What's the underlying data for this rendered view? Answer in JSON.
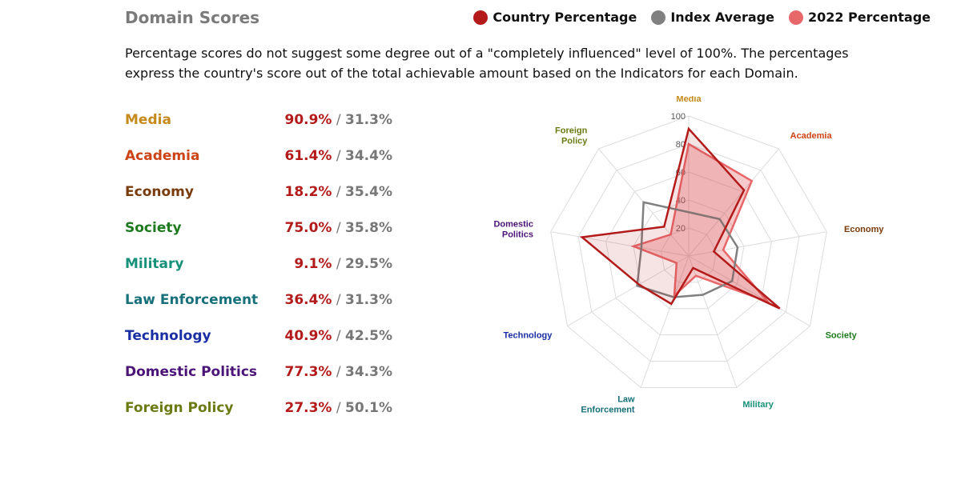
{
  "header": {
    "title": "Domain Scores",
    "note": "Percentage scores do not suggest some degree out of a \"completely influenced\" level of 100%. The percentages express the country's score out of the total achievable amount based on the Indicators for each Domain."
  },
  "legend": [
    {
      "label": "Country Percentage",
      "color": "#b31b1b"
    },
    {
      "label": "Index Average",
      "color": "#808080"
    },
    {
      "label": "2022 Percentage",
      "color": "#e8686a"
    }
  ],
  "rows": [
    {
      "label": "Media",
      "color": "#c58a1c",
      "country": "90.9%",
      "sep": " / ",
      "index": "31.3%"
    },
    {
      "label": "Academia",
      "color": "#cc4316",
      "country": "61.4%",
      "sep": " / ",
      "index": "34.4%"
    },
    {
      "label": "Economy",
      "color": "#7a3b0c",
      "country": "18.2%",
      "sep": " / ",
      "index": "35.4%"
    },
    {
      "label": "Society",
      "color": "#1e7a1e",
      "country": "75.0%",
      "sep": " / ",
      "index": "35.8%"
    },
    {
      "label": "Military",
      "color": "#17917a",
      "country": "9.1%",
      "sep": " / ",
      "index": "29.5%"
    },
    {
      "label": "Law Enforcement",
      "color": "#17707a",
      "country": "36.4%",
      "sep": " / ",
      "index": "31.3%"
    },
    {
      "label": "Technology",
      "color": "#1a2fa3",
      "country": "40.9%",
      "sep": " / ",
      "index": "42.5%"
    },
    {
      "label": "Domestic Politics",
      "color": "#4b1477",
      "country": "77.3%",
      "sep": " / ",
      "index": "34.3%"
    },
    {
      "label": "Foreign Policy",
      "color": "#6b7a12",
      "country": "27.3%",
      "sep": " / ",
      "index": "50.1%"
    }
  ],
  "chart_data": {
    "type": "radar",
    "axes": [
      {
        "label": [
          "Media"
        ],
        "color": "#c58a1c"
      },
      {
        "label": [
          "Academia"
        ],
        "color": "#cc4316"
      },
      {
        "label": [
          "Economy"
        ],
        "color": "#7a3b0c"
      },
      {
        "label": [
          "Society"
        ],
        "color": "#1e7a1e"
      },
      {
        "label": [
          "Military"
        ],
        "color": "#17917a"
      },
      {
        "label": [
          "Law",
          "Enforcement"
        ],
        "color": "#17707a"
      },
      {
        "label": [
          "Technology"
        ],
        "color": "#1a2fa3"
      },
      {
        "label": [
          "Domestic",
          "Politics"
        ],
        "color": "#4b1477"
      },
      {
        "label": [
          "Foreign",
          "Policy"
        ],
        "color": "#6b7a12"
      }
    ],
    "range": [
      0,
      100
    ],
    "grid_levels": [
      20,
      40,
      60,
      80,
      100
    ],
    "tick_labels": [
      "20",
      "40",
      "60",
      "80",
      "100"
    ],
    "series": [
      {
        "name": "2022 Percentage",
        "color": "#e8686a",
        "values": [
          80,
          70,
          25,
          65,
          15,
          30,
          10,
          40,
          20
        ]
      },
      {
        "name": "Index Average",
        "color": "#808080",
        "values": [
          31.3,
          34.4,
          35.4,
          35.8,
          29.5,
          31.3,
          42.5,
          34.3,
          50.1
        ]
      },
      {
        "name": "Country Percentage",
        "color": "#b31b1b",
        "values": [
          90.9,
          61.4,
          18.2,
          75.0,
          9.1,
          36.4,
          40.9,
          77.3,
          27.3
        ]
      }
    ]
  }
}
